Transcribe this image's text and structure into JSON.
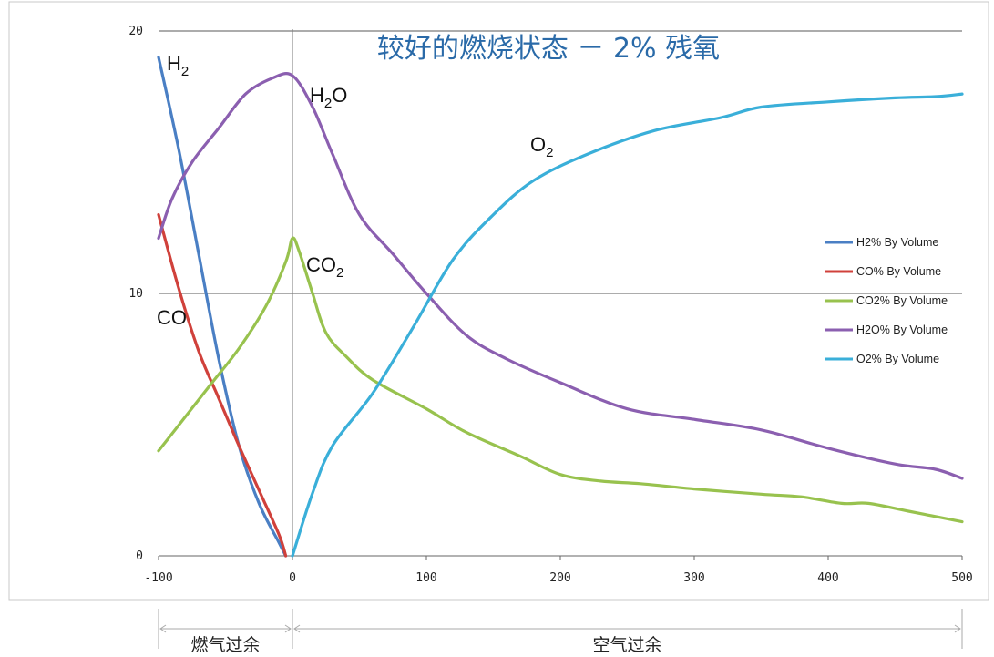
{
  "chart_data": {
    "type": "line",
    "title": "较好的燃烧状态 － 2% 残氧",
    "xlim": [
      -100,
      500
    ],
    "ylim": [
      0,
      20
    ],
    "x_ticks": [
      "-100",
      "0",
      "100",
      "200",
      "300",
      "400",
      "500"
    ],
    "y_ticks": [
      "0",
      "10",
      "20"
    ],
    "gridlines_y": [
      10,
      20
    ],
    "reference_x": 0,
    "legend_position": "right",
    "series": [
      {
        "name": "H2% By Volume",
        "label_main": "H",
        "label_sub": "2",
        "label_tail": "",
        "color": "#4a7fc4",
        "points": [
          [
            -100,
            19
          ],
          [
            -85,
            15.5
          ],
          [
            -70,
            11.5
          ],
          [
            -55,
            7.5
          ],
          [
            -40,
            4.2
          ],
          [
            -25,
            2.0
          ],
          [
            -10,
            0.5
          ],
          [
            -5,
            0
          ]
        ]
      },
      {
        "name": "CO% By Volume",
        "label_main": "CO",
        "label_sub": "",
        "label_tail": "",
        "color": "#d0413b",
        "points": [
          [
            -100,
            13
          ],
          [
            -85,
            10.2
          ],
          [
            -70,
            7.8
          ],
          [
            -55,
            6.0
          ],
          [
            -40,
            4.2
          ],
          [
            -25,
            2.5
          ],
          [
            -10,
            0.8
          ],
          [
            -5,
            0
          ]
        ]
      },
      {
        "name": "CO2% By Volume",
        "label_main": "CO",
        "label_sub": "2",
        "label_tail": "",
        "color": "#98c24e",
        "points": [
          [
            -100,
            4
          ],
          [
            -80,
            5.3
          ],
          [
            -60,
            6.6
          ],
          [
            -40,
            7.9
          ],
          [
            -20,
            9.5
          ],
          [
            -5,
            11.2
          ],
          [
            0,
            12.1
          ],
          [
            5,
            11.6
          ],
          [
            15,
            10
          ],
          [
            25,
            8.5
          ],
          [
            40,
            7.6
          ],
          [
            60,
            6.7
          ],
          [
            100,
            5.6
          ],
          [
            130,
            4.7
          ],
          [
            170,
            3.8
          ],
          [
            200,
            3.1
          ],
          [
            230,
            2.85
          ],
          [
            260,
            2.75
          ],
          [
            300,
            2.55
          ],
          [
            350,
            2.35
          ],
          [
            380,
            2.25
          ],
          [
            410,
            2.0
          ],
          [
            430,
            2.0
          ],
          [
            460,
            1.7
          ],
          [
            500,
            1.3
          ]
        ]
      },
      {
        "name": "H2O% By Volume",
        "label_main": "H",
        "label_sub": "2",
        "label_tail": "O",
        "color": "#8b5fb0",
        "points": [
          [
            -100,
            12.1
          ],
          [
            -90,
            13.6
          ],
          [
            -75,
            15.0
          ],
          [
            -55,
            16.3
          ],
          [
            -35,
            17.6
          ],
          [
            -15,
            18.2
          ],
          [
            0,
            18.3
          ],
          [
            15,
            17.1
          ],
          [
            30,
            15.3
          ],
          [
            50,
            13.0
          ],
          [
            75,
            11.5
          ],
          [
            100,
            10.0
          ],
          [
            130,
            8.4
          ],
          [
            160,
            7.5
          ],
          [
            200,
            6.6
          ],
          [
            250,
            5.6
          ],
          [
            300,
            5.2
          ],
          [
            350,
            4.8
          ],
          [
            400,
            4.1
          ],
          [
            450,
            3.5
          ],
          [
            480,
            3.3
          ],
          [
            500,
            2.95
          ]
        ]
      },
      {
        "name": "O2% By Volume",
        "label_main": "O",
        "label_sub": "2",
        "label_tail": "",
        "color": "#3aafd9",
        "points": [
          [
            0,
            0
          ],
          [
            15,
            2.4
          ],
          [
            30,
            4.2
          ],
          [
            60,
            6.2
          ],
          [
            90,
            8.7
          ],
          [
            120,
            11.3
          ],
          [
            150,
            13.0
          ],
          [
            180,
            14.3
          ],
          [
            220,
            15.3
          ],
          [
            270,
            16.2
          ],
          [
            320,
            16.7
          ],
          [
            350,
            17.1
          ],
          [
            400,
            17.3
          ],
          [
            450,
            17.45
          ],
          [
            480,
            17.5
          ],
          [
            500,
            17.6
          ]
        ]
      }
    ],
    "regions": [
      {
        "label": "燃气过余",
        "from": -100,
        "to": 0
      },
      {
        "label": "空气过余",
        "from": 0,
        "to": 500
      }
    ]
  }
}
